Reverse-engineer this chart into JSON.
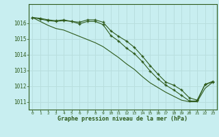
{
  "title": "Graphe pression niveau de la mer (hPa)",
  "background_color": "#c8eef0",
  "grid_color": "#b8dede",
  "line_color": "#2d5a1b",
  "xlim": [
    -0.5,
    23.5
  ],
  "ylim": [
    1010.5,
    1017.2
  ],
  "yticks": [
    1011,
    1012,
    1013,
    1014,
    1015,
    1016
  ],
  "xticks": [
    0,
    1,
    2,
    3,
    4,
    5,
    6,
    7,
    8,
    9,
    10,
    11,
    12,
    13,
    14,
    15,
    16,
    17,
    18,
    19,
    20,
    21,
    22,
    23
  ],
  "series1": [
    1016.35,
    1016.3,
    1016.2,
    1016.15,
    1016.2,
    1016.1,
    1016.05,
    1016.2,
    1016.2,
    1016.05,
    1015.5,
    1015.15,
    1014.85,
    1014.45,
    1013.9,
    1013.3,
    1012.75,
    1012.25,
    1012.05,
    1011.75,
    1011.25,
    1011.1,
    1012.1,
    1012.3
  ],
  "series2": [
    1016.35,
    1016.25,
    1016.15,
    1016.1,
    1016.15,
    1016.1,
    1015.95,
    1016.1,
    1016.1,
    1015.9,
    1015.2,
    1014.85,
    1014.4,
    1014.05,
    1013.55,
    1012.95,
    1012.45,
    1012.05,
    1011.75,
    1011.4,
    1011.05,
    1011.05,
    1012.1,
    1012.25
  ],
  "series3": [
    1016.35,
    1016.1,
    1015.85,
    1015.65,
    1015.55,
    1015.35,
    1015.15,
    1014.95,
    1014.75,
    1014.5,
    1014.15,
    1013.8,
    1013.4,
    1013.05,
    1012.6,
    1012.2,
    1011.9,
    1011.6,
    1011.35,
    1011.1,
    1011.0,
    1011.0,
    1011.85,
    1012.25
  ]
}
